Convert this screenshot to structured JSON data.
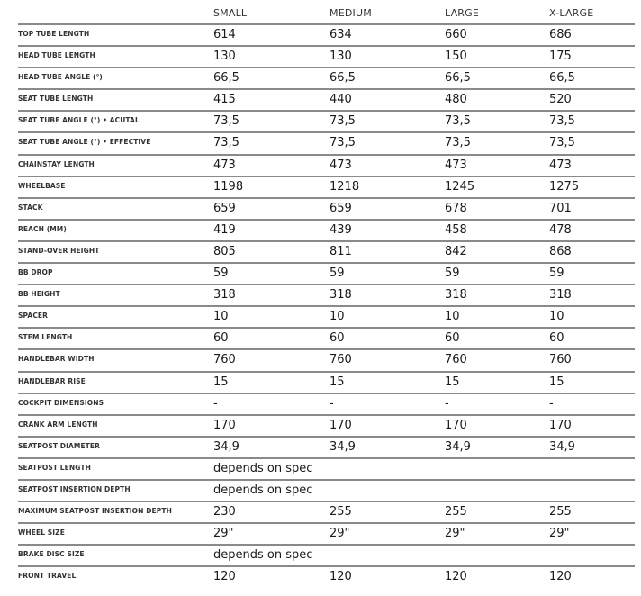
{
  "columns": [
    "SMALL",
    "MEDIUM",
    "LARGE",
    "X-LARGE"
  ],
  "rows": [
    {
      "label": "TOP TUBE LENGTH",
      "values": [
        "614",
        "634",
        "660",
        "686"
      ]
    },
    {
      "label": "HEAD TUBE LENGTH",
      "values": [
        "130",
        "130",
        "150",
        "175"
      ]
    },
    {
      "label": "HEAD TUBE ANGLE (°)",
      "values": [
        "66,5",
        "66,5",
        "66,5",
        "66,5"
      ]
    },
    {
      "label": "SEAT TUBE LENGTH",
      "values": [
        "415",
        "440",
        "480",
        "520"
      ]
    },
    {
      "label": "SEAT TUBE ANGLE (°) • ACUTAL",
      "values": [
        "73,5",
        "73,5",
        "73,5",
        "73,5"
      ]
    },
    {
      "label": "SEAT TUBE ANGLE (°) • EFFECTIVE",
      "values": [
        "73,5",
        "73,5",
        "73,5",
        "73,5"
      ]
    },
    {
      "label": "CHAINSTAY LENGTH",
      "values": [
        "473",
        "473",
        "473",
        "473"
      ]
    },
    {
      "label": "WHEELBASE",
      "values": [
        "1198",
        "1218",
        "1245",
        "1275"
      ]
    },
    {
      "label": "STACK",
      "values": [
        "659",
        "659",
        "678",
        "701"
      ]
    },
    {
      "label": "REACH (MM)",
      "values": [
        "419",
        "439",
        "458",
        "478"
      ]
    },
    {
      "label": "STAND-OVER HEIGHT",
      "values": [
        "805",
        "811",
        "842",
        "868"
      ]
    },
    {
      "label": "BB DROP",
      "values": [
        "59",
        "59",
        "59",
        "59"
      ]
    },
    {
      "label": "BB HEIGHT",
      "values": [
        "318",
        "318",
        "318",
        "318"
      ]
    },
    {
      "label": "SPACER",
      "values": [
        "10",
        "10",
        "10",
        "10"
      ]
    },
    {
      "label": "STEM LENGTH",
      "values": [
        "60",
        "60",
        "60",
        "60"
      ]
    },
    {
      "label": "HANDLEBAR WIDTH",
      "values": [
        "760",
        "760",
        "760",
        "760"
      ]
    },
    {
      "label": "HANDLEBAR RISE",
      "values": [
        "15",
        "15",
        "15",
        "15"
      ]
    },
    {
      "label": "COCKPIT DIMENSIONS",
      "values": [
        "-",
        "-",
        "-",
        "-"
      ]
    },
    {
      "label": "CRANK ARM LENGTH",
      "values": [
        "170",
        "170",
        "170",
        "170"
      ]
    },
    {
      "label": "SEATPOST DIAMETER",
      "values": [
        "34,9",
        "34,9",
        "34,9",
        "34,9"
      ]
    },
    {
      "label": "SEATPOST LENGTH",
      "values": [
        "depends on spec"
      ]
    },
    {
      "label": "SEATPOST INSERTION DEPTH",
      "values": [
        "depends on spec"
      ]
    },
    {
      "label": "MAXIMUM SEATPOST INSERTION DEPTH",
      "values": [
        "230",
        "255",
        "255",
        "255"
      ]
    },
    {
      "label": "WHEEL SIZE",
      "values": [
        "29\"",
        "29\"",
        "29\"",
        "29\""
      ]
    },
    {
      "label": "BRAKE DISC SIZE",
      "values": [
        "depends on spec"
      ]
    },
    {
      "label": "FRONT TRAVEL",
      "values": [
        "120",
        "120",
        "120",
        "120"
      ]
    }
  ]
}
